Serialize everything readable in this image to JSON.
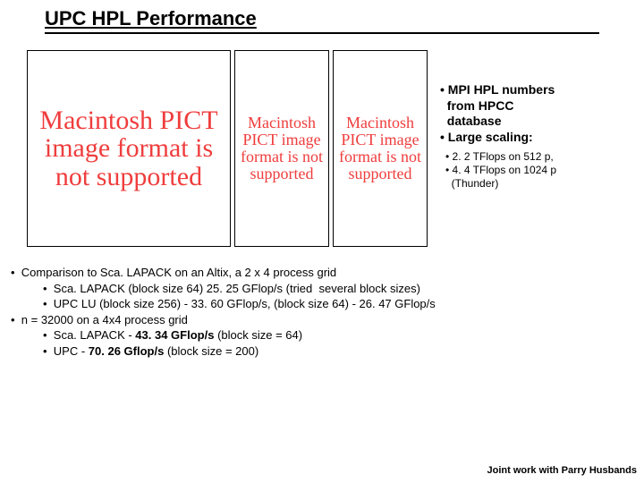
{
  "title": "UPC HPL Performance",
  "pict_text": "Macintosh PICT image format is not supported",
  "side": {
    "b1a": "• MPI HPL numbers",
    "b1b": "  from HPCC",
    "b1c": "  database",
    "b2": "• Large scaling:",
    "s1": "• 2. 2 TFlops on 512 p,",
    "s2": "• 4. 4 TFlops on 1024 p",
    "s3": "  (Thunder)"
  },
  "bottom": {
    "l1": "•  Comparison to Sca. LAPACK on an Altix, a 2 x 4 process grid",
    "l1a": "•  Sca. LAPACK (block size 64) 25. 25 GFlop/s (tried  several block sizes)",
    "l1b": "•  UPC LU (block size 256) - 33. 60 GFlop/s, (block size 64) - 26. 47 GFlop/s",
    "l2": "•  n = 32000 on a 4x4 process grid",
    "l2a_pre": "•  Sca. LAPACK - ",
    "l2a_bold": "43. 34 GFlop/s",
    "l2a_post": " (block size = 64)",
    "l2b_pre": "•  UPC - ",
    "l2b_bold": "70. 26 Gflop/s",
    "l2b_post": " (block size = 200)"
  },
  "footer": "Joint work with Parry Husbands",
  "colors": {
    "pict_text": "#ef3d3d",
    "text": "#000000",
    "bg": "#ffffff"
  }
}
